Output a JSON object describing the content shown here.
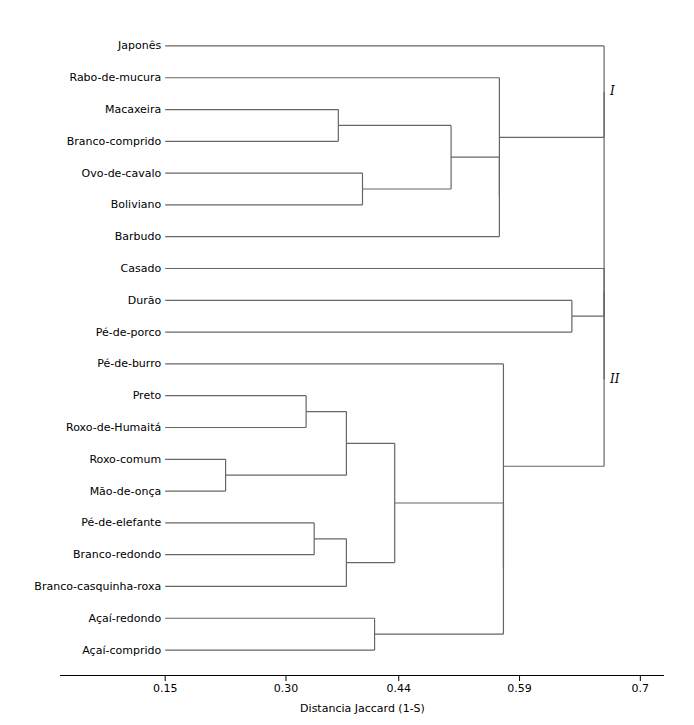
{
  "chart_data": {
    "type": "dendrogram",
    "xlabel": "Distancia Jaccard (1-S)",
    "categories": [
      "Japonês",
      "Rabo-de-mucura",
      "Macaxeira",
      "Branco-comprido",
      "Ovo-de-cavalo",
      "Boliviano",
      "Barbudo",
      "Casado",
      "Durão",
      "Pé-de-porco",
      "Pé-de-burro",
      "Preto",
      "Roxo-de-Humaitá",
      "Roxo-comum",
      "Mão-de-onça",
      "Pé-de-elefante",
      "Branco-redondo",
      "Branco-casquinha-roxa",
      "Açaí-redondo",
      "Açaí-comprido"
    ],
    "leaf_height": 0.15,
    "tree": {
      "height": 0.695,
      "children": [
        {
          "label": "I",
          "height": 0.695,
          "children": [
            "Japonês",
            {
              "height": 0.565,
              "children": [
                "Rabo-de-mucura",
                {
                  "height": 0.565,
                  "children": [
                    {
                      "height": 0.505,
                      "children": [
                        {
                          "height": 0.365,
                          "children": [
                            "Macaxeira",
                            "Branco-comprido"
                          ]
                        },
                        {
                          "height": 0.395,
                          "children": [
                            "Ovo-de-cavalo",
                            "Boliviano"
                          ]
                        }
                      ]
                    },
                    "Barbudo"
                  ]
                }
              ]
            }
          ]
        },
        {
          "label": "II",
          "height": 0.695,
          "children": [
            {
              "height": 0.695,
              "children": [
                "Casado",
                {
                  "height": 0.655,
                  "children": [
                    "Durão",
                    "Pé-de-porco"
                  ]
                }
              ]
            },
            {
              "height": 0.57,
              "children": [
                "Pé-de-burro",
                {
                  "height": 0.57,
                  "children": [
                    {
                      "height": 0.435,
                      "children": [
                        {
                          "height": 0.375,
                          "children": [
                            {
                              "height": 0.325,
                              "children": [
                                "Preto",
                                "Roxo-de-Humaitá"
                              ]
                            },
                            {
                              "height": 0.225,
                              "children": [
                                "Roxo-comum",
                                "Mão-de-onça"
                              ]
                            }
                          ]
                        },
                        {
                          "height": 0.375,
                          "children": [
                            {
                              "height": 0.335,
                              "children": [
                                "Pé-de-elefante",
                                "Branco-redondo"
                              ]
                            },
                            "Branco-casquinha-roxa"
                          ]
                        }
                      ]
                    },
                    {
                      "height": 0.41,
                      "children": [
                        "Açaí-redondo",
                        "Açaí-comprido"
                      ]
                    }
                  ]
                }
              ]
            }
          ]
        }
      ]
    },
    "color": "#666666",
    "xlim": [
      0.02,
      0.77
    ],
    "xticks": [
      0.15,
      {
        "value": 0.3,
        "label": "0.30"
      },
      0.44,
      0.59,
      {
        "value": 0.74,
        "label": "0.7"
      }
    ],
    "grid": false
  }
}
